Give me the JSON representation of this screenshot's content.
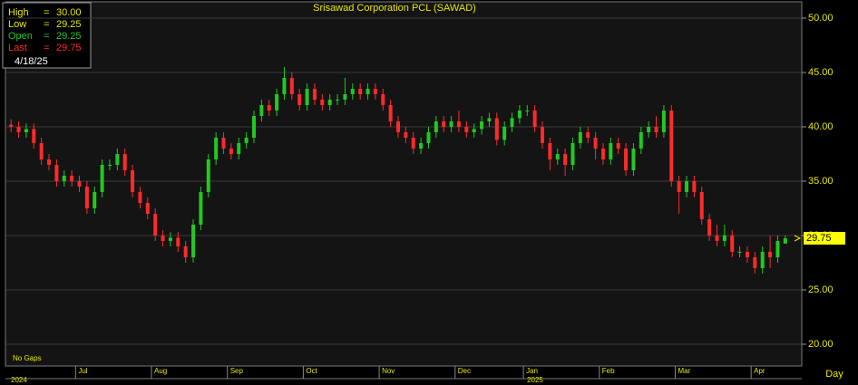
{
  "chart_data": {
    "type": "candlestick",
    "title": "Srisawad Corporation PCL (SAWAD)",
    "note": "No Gaps",
    "period_label": "Day",
    "date": "4/18/25",
    "separator": "=",
    "info": [
      {
        "name": "High",
        "value": 30,
        "label": "30.00",
        "color": "#e8e800"
      },
      {
        "name": "Low",
        "value": 29.25,
        "label": "29.25",
        "color": "#e8e800"
      },
      {
        "name": "Open",
        "value": 29.25,
        "label": "29.25",
        "color": "#22c822"
      },
      {
        "name": "Last",
        "value": 29.75,
        "label": "29.75",
        "color": "#ff2a2a"
      }
    ],
    "up_color": "#22c822",
    "down_color": "#ff2a2a",
    "grid": true,
    "ylim": [
      18,
      51.5
    ],
    "yticks": [
      {
        "value": 20,
        "label": "20.00"
      },
      {
        "value": 25,
        "label": "25.00"
      },
      {
        "value": 30,
        "label": "30.00"
      },
      {
        "value": 35,
        "label": "35.00"
      },
      {
        "value": 40,
        "label": "40.00"
      },
      {
        "value": 45,
        "label": "45.00"
      },
      {
        "value": 50,
        "label": "50.00"
      }
    ],
    "categories": [
      null,
      null,
      null,
      null,
      null,
      null,
      null,
      null,
      null,
      "Jul",
      null,
      null,
      null,
      null,
      null,
      null,
      null,
      null,
      null,
      "Aug",
      null,
      null,
      null,
      null,
      null,
      null,
      null,
      null,
      null,
      "Sep",
      null,
      null,
      null,
      null,
      null,
      null,
      null,
      null,
      null,
      "Oct",
      null,
      null,
      null,
      null,
      null,
      null,
      null,
      null,
      null,
      "Nov",
      null,
      null,
      null,
      null,
      null,
      null,
      null,
      null,
      null,
      "Dec",
      null,
      null,
      null,
      null,
      null,
      null,
      null,
      null,
      "Jan",
      null,
      null,
      null,
      null,
      null,
      null,
      null,
      null,
      null,
      "Feb",
      null,
      null,
      null,
      null,
      null,
      null,
      null,
      null,
      null,
      "Mar",
      null,
      null,
      null,
      null,
      null,
      null,
      null,
      null,
      null,
      "Apr",
      null,
      null,
      null,
      null
    ],
    "years": [
      "2024",
      null,
      null,
      null,
      null,
      null,
      null,
      null,
      null,
      null,
      null,
      null,
      null,
      null,
      null,
      null,
      null,
      null,
      null,
      null,
      null,
      null,
      null,
      null,
      null,
      null,
      null,
      null,
      null,
      null,
      null,
      null,
      null,
      null,
      null,
      null,
      null,
      null,
      null,
      null,
      null,
      null,
      null,
      null,
      null,
      null,
      null,
      null,
      null,
      null,
      null,
      null,
      null,
      null,
      null,
      null,
      null,
      null,
      null,
      null,
      null,
      null,
      null,
      null,
      null,
      null,
      null,
      null,
      "2025",
      null,
      null,
      null,
      null,
      null,
      null,
      null,
      null,
      null,
      null,
      null,
      null,
      null,
      null,
      null,
      null,
      null,
      null,
      null,
      null,
      null,
      null,
      null,
      null,
      null,
      null,
      null,
      null,
      null,
      null,
      null,
      null,
      null,
      null
    ],
    "open": [
      40.2,
      40,
      39.5,
      39.8,
      38.5,
      37,
      36.5,
      35,
      35.5,
      35,
      34.5,
      32.5,
      34,
      36.5,
      36.5,
      37.5,
      36,
      34,
      33,
      32,
      30,
      29.5,
      29.8,
      29,
      28,
      31,
      34,
      37,
      39,
      38,
      37.5,
      38.5,
      39,
      41,
      42,
      41.5,
      43,
      44.5,
      43,
      42,
      43.5,
      42.5,
      42,
      42.5,
      42.5,
      43,
      43.5,
      43,
      43.5,
      43,
      42,
      40.5,
      39.5,
      39,
      38,
      38.5,
      39.5,
      40.5,
      40,
      40.5,
      40,
      39.5,
      39.8,
      40.5,
      40.8,
      38.8,
      40,
      40.8,
      41.5,
      41.5,
      40,
      38.5,
      37,
      37.5,
      36.5,
      38.5,
      39.5,
      39,
      38,
      37,
      38.5,
      38,
      36,
      38,
      39.5,
      40,
      39.5,
      41.5,
      35,
      34,
      35,
      34,
      31.5,
      30,
      29.5,
      30,
      28.5,
      28.5,
      28,
      27,
      28.5,
      28,
      29.25
    ],
    "high": [
      40.7,
      40.5,
      40.3,
      40.3,
      39,
      37.5,
      37,
      36,
      36,
      35.5,
      35,
      34.5,
      37,
      37,
      38,
      38,
      36.5,
      34.5,
      33.5,
      32.5,
      30.5,
      30.3,
      30.3,
      29.5,
      31.5,
      34.5,
      37.5,
      39.5,
      39.5,
      38.5,
      39,
      39.5,
      41.5,
      42.5,
      42.5,
      43.5,
      45.5,
      45,
      43.5,
      44,
      44,
      43,
      43,
      43,
      44.5,
      44,
      44,
      44,
      44,
      43.5,
      42.5,
      41,
      40,
      39.5,
      39,
      40,
      41,
      41,
      41,
      41.5,
      40.5,
      40.3,
      41,
      41.3,
      41.3,
      40.5,
      41.3,
      42,
      42,
      42,
      40.5,
      39,
      38,
      38,
      39,
      40,
      40,
      39.5,
      38.5,
      39,
      39,
      38.5,
      38.5,
      40,
      40.5,
      41,
      42,
      42,
      35.5,
      35.5,
      35.5,
      34.5,
      32,
      31,
      31,
      30.5,
      29,
      29,
      28.5,
      29,
      30,
      30,
      30
    ],
    "low": [
      39.5,
      39,
      39,
      38,
      36.5,
      36,
      34.5,
      34.5,
      34.5,
      34,
      32,
      32,
      33.5,
      36,
      36,
      35.5,
      33.5,
      32.5,
      31.5,
      29.5,
      29,
      29,
      28.5,
      27.5,
      27.5,
      30.5,
      33.5,
      36.5,
      37.5,
      37,
      37,
      38,
      38.5,
      40.5,
      41,
      41,
      42.5,
      42.5,
      41.5,
      41.5,
      42,
      41.5,
      41.5,
      42,
      42,
      42.5,
      42.5,
      42.5,
      42.5,
      41.5,
      40,
      39,
      38.5,
      37.5,
      37.5,
      38,
      39,
      39.5,
      39.5,
      39.5,
      39,
      39,
      39.3,
      40,
      38.3,
      38.3,
      39.5,
      40.3,
      41,
      39.5,
      38,
      36,
      36.5,
      35.5,
      36,
      38,
      38.5,
      37,
      36.5,
      36.5,
      37.5,
      35.5,
      35.5,
      37.5,
      39,
      39,
      39,
      34.5,
      32,
      33.5,
      33.5,
      31,
      29.5,
      29,
      29,
      28,
      28,
      27.5,
      26.5,
      26.5,
      27,
      27.5,
      29.25
    ],
    "close": [
      40,
      39.5,
      39.8,
      38.5,
      37,
      36.5,
      35,
      35.5,
      35,
      34.5,
      32.5,
      34,
      36.5,
      36.5,
      37.5,
      36,
      34,
      33,
      32,
      30,
      29.5,
      29.8,
      29,
      28,
      31,
      34,
      37,
      39,
      38,
      37.5,
      38.5,
      39,
      41,
      42,
      41.5,
      43,
      44.5,
      43,
      42,
      43.5,
      42.5,
      42,
      42.5,
      42.5,
      43,
      43.5,
      43,
      43.5,
      43,
      42,
      40.5,
      39.5,
      39,
      38,
      38.5,
      39.5,
      40.5,
      40,
      40.5,
      40,
      39.5,
      39.8,
      40.5,
      40.8,
      38.8,
      40,
      40.8,
      41.5,
      41.5,
      40,
      38.5,
      37,
      37.5,
      36.5,
      38.5,
      39.5,
      39,
      38,
      37,
      38.5,
      38,
      36,
      38,
      39.5,
      40,
      39.5,
      41.5,
      35,
      34,
      35,
      34,
      31.5,
      30,
      29.5,
      30,
      28.5,
      28.5,
      28,
      27,
      28.5,
      28,
      29.5,
      29.75
    ]
  }
}
